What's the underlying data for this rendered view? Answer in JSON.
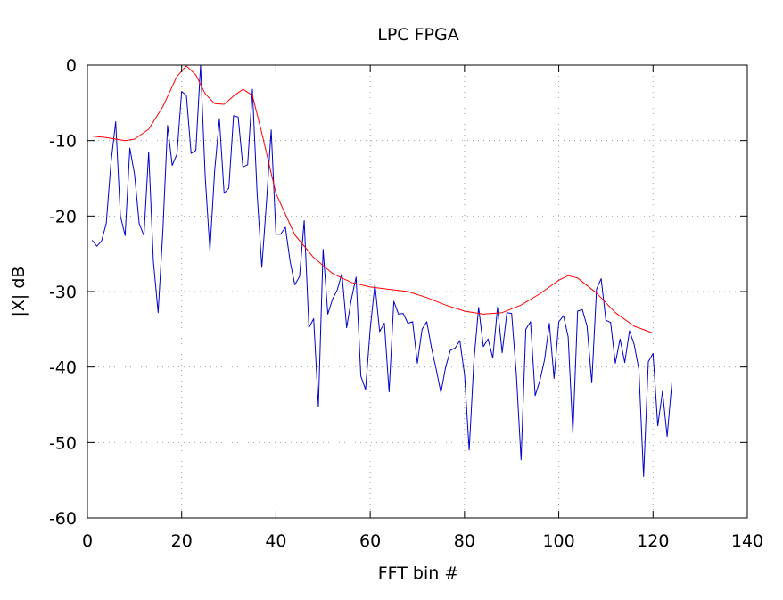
{
  "chart_data": {
    "type": "line",
    "title": "LPC FPGA",
    "xlabel": "FFT bin #",
    "ylabel": "|X| dB",
    "xlim": [
      0,
      140
    ],
    "ylim": [
      -60,
      0
    ],
    "xticks": [
      0,
      20,
      40,
      60,
      80,
      100,
      120,
      140
    ],
    "yticks": [
      0,
      -10,
      -20,
      -30,
      -40,
      -50,
      -60
    ],
    "grid": true,
    "legend": "none",
    "series": [
      {
        "color": "#0000cc",
        "x": [
          1,
          2,
          3,
          4,
          5,
          6,
          7,
          8,
          9,
          10,
          11,
          12,
          13,
          14,
          15,
          16,
          17,
          18,
          19,
          20,
          21,
          22,
          23,
          24,
          25,
          26,
          27,
          28,
          29,
          30,
          31,
          32,
          33,
          34,
          35,
          36,
          37,
          38,
          39,
          40,
          41,
          42,
          43,
          44,
          45,
          46,
          47,
          48,
          49,
          50,
          51,
          52,
          53,
          54,
          55,
          56,
          57,
          58,
          59,
          60,
          61,
          62,
          63,
          64,
          65,
          66,
          67,
          68,
          69,
          70,
          71,
          72,
          73,
          74,
          75,
          76,
          77,
          78,
          79,
          80,
          81,
          82,
          83,
          84,
          85,
          86,
          87,
          88,
          89,
          90,
          91,
          92,
          93,
          94,
          95,
          96,
          97,
          98,
          99,
          100,
          101,
          102,
          103,
          104,
          105,
          106,
          107,
          108,
          109,
          110,
          111,
          112,
          113,
          114,
          115,
          116,
          117,
          118,
          119,
          120,
          121,
          122,
          123,
          124
        ],
        "y": [
          -23.2,
          -24.0,
          -23.3,
          -21.0,
          -13.0,
          -7.5,
          -20.0,
          -22.6,
          -11.0,
          -14.5,
          -21.0,
          -22.6,
          -11.5,
          -26.0,
          -32.8,
          -22.0,
          -8.0,
          -13.3,
          -11.8,
          -3.5,
          -4.0,
          -11.7,
          -11.3,
          0.0,
          -14.8,
          -24.6,
          -14.0,
          -7.1,
          -17.0,
          -16.3,
          -6.7,
          -6.9,
          -13.5,
          -13.2,
          -3.2,
          -17.0,
          -26.8,
          -18.0,
          -8.6,
          -22.4,
          -22.4,
          -21.5,
          -26.0,
          -29.1,
          -28.0,
          -20.6,
          -34.8,
          -33.6,
          -45.3,
          -24.4,
          -33.0,
          -31.0,
          -29.8,
          -27.6,
          -34.8,
          -31.0,
          -28.1,
          -41.2,
          -43.0,
          -35.0,
          -29.0,
          -35.3,
          -34.2,
          -43.3,
          -31.3,
          -33.0,
          -32.9,
          -34.2,
          -34.0,
          -39.5,
          -35.0,
          -34.0,
          -37.5,
          -40.3,
          -43.4,
          -40.0,
          -37.8,
          -37.5,
          -36.5,
          -41.0,
          -51.0,
          -39.2,
          -32.1,
          -37.3,
          -36.3,
          -38.8,
          -32.1,
          -38.1,
          -32.8,
          -32.9,
          -41.0,
          -52.3,
          -35.0,
          -34.0,
          -43.8,
          -41.8,
          -39.0,
          -34.2,
          -41.5,
          -34.0,
          -33.2,
          -36.0,
          -48.8,
          -32.6,
          -32.4,
          -34.6,
          -42.1,
          -29.7,
          -28.3,
          -33.8,
          -34.1,
          -39.5,
          -36.3,
          -39.4,
          -35.2,
          -37.0,
          -40.3,
          -54.5,
          -39.3,
          -38.2,
          -47.8,
          -43.2,
          -49.2,
          -42.1
        ]
      },
      {
        "color": "#ff0000",
        "x": [
          1,
          4,
          8,
          10,
          13,
          16,
          19,
          21,
          23,
          25,
          27,
          29,
          31,
          33,
          35,
          37,
          40,
          44,
          48,
          52,
          56,
          60,
          64,
          68,
          72,
          76,
          80,
          84,
          88,
          92,
          96,
          100,
          102,
          104,
          108,
          112,
          116,
          120
        ],
        "y": [
          -9.4,
          -9.6,
          -10.0,
          -9.8,
          -8.5,
          -5.5,
          -1.5,
          -0.1,
          -1.3,
          -3.8,
          -5.1,
          -5.2,
          -4.1,
          -3.2,
          -4.0,
          -9.0,
          -17.0,
          -22.5,
          -25.5,
          -27.6,
          -28.8,
          -29.4,
          -29.7,
          -30.0,
          -30.8,
          -31.8,
          -32.6,
          -33.0,
          -32.8,
          -31.8,
          -30.3,
          -28.5,
          -27.9,
          -28.2,
          -30.2,
          -32.8,
          -34.6,
          -35.5
        ]
      }
    ]
  }
}
